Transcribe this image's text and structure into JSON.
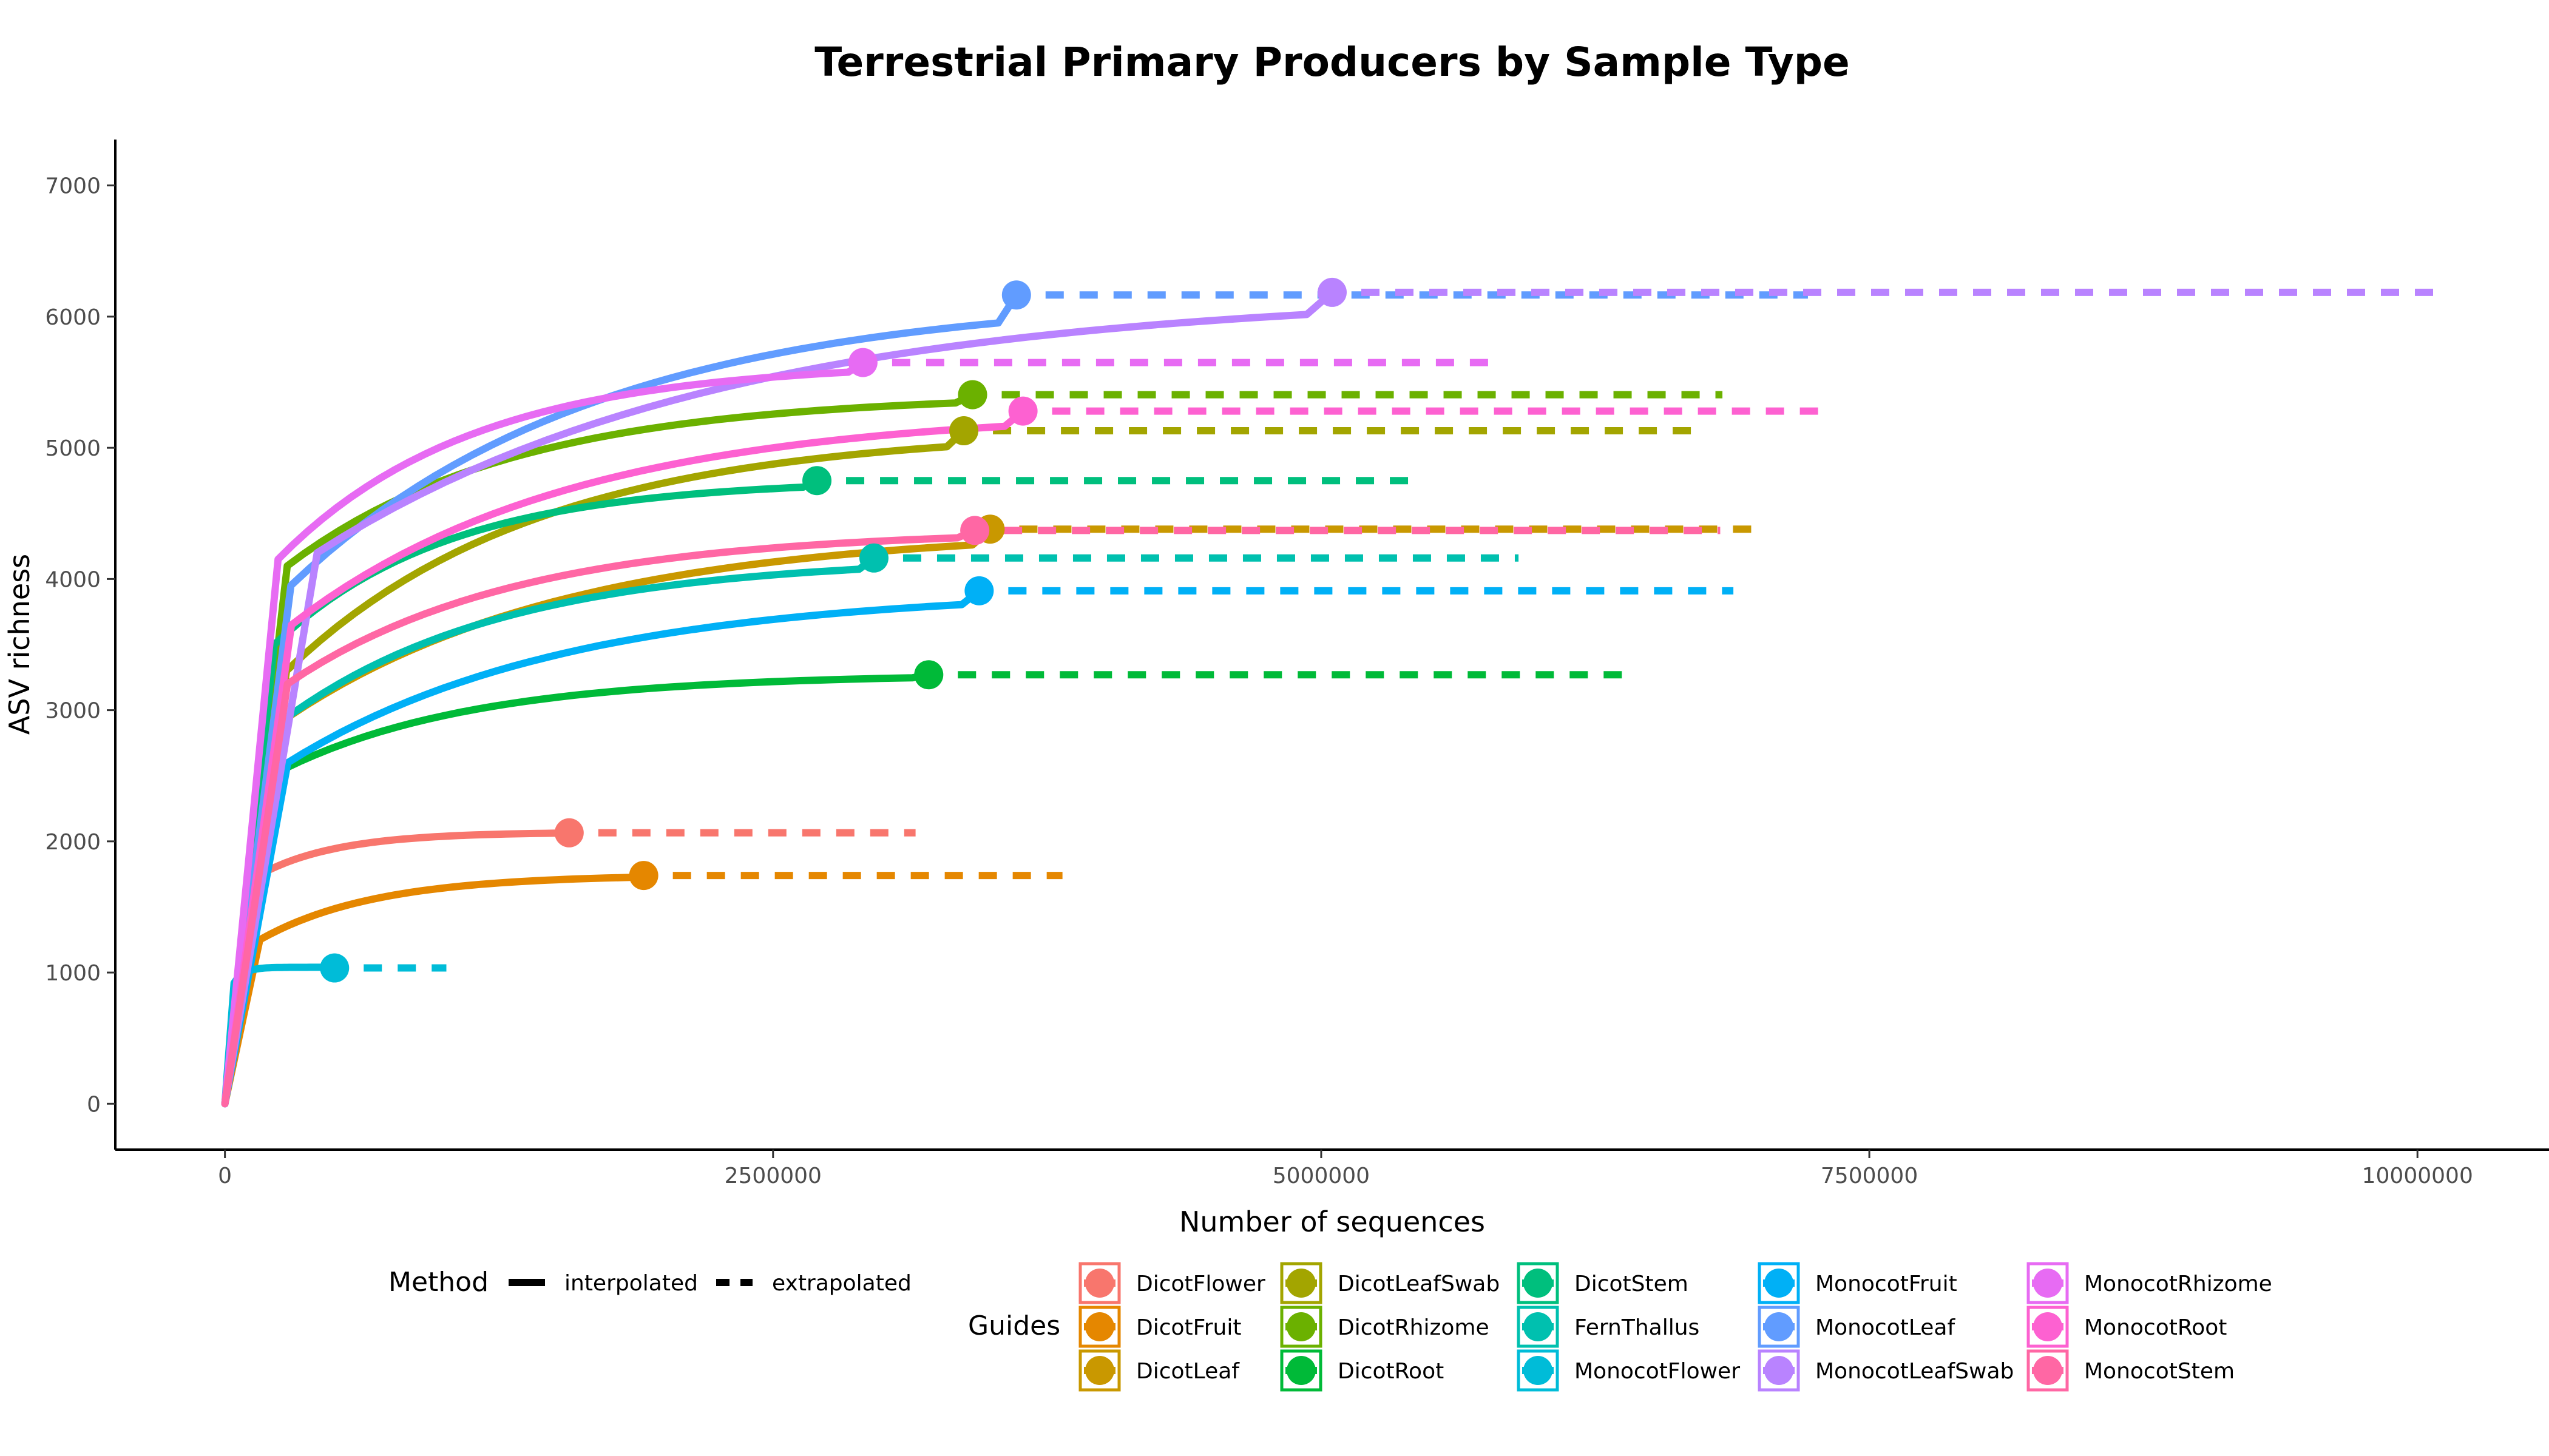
{
  "chart_data": {
    "type": "line",
    "title": "Terrestrial Primary Producers by Sample Type",
    "xlabel": "Number of sequences",
    "ylabel": "ASV richness",
    "xlim": [
      -500000,
      10600000
    ],
    "ylim": [
      -350,
      7350
    ],
    "x_ticks": [
      0,
      2500000,
      5000000,
      7500000,
      10000000
    ],
    "x_tick_labels": [
      "0",
      "2500000",
      "5000000",
      "7500000",
      "10000000"
    ],
    "y_ticks": [
      0,
      1000,
      2000,
      3000,
      4000,
      5000,
      6000,
      7000
    ],
    "y_tick_labels": [
      "0",
      "1000",
      "2000",
      "3000",
      "4000",
      "5000",
      "6000",
      "7000"
    ],
    "grid": false,
    "legend_position": "bottom",
    "method_legend": {
      "title": "Method",
      "items": [
        {
          "label": "interpolated",
          "style": "solid"
        },
        {
          "label": "extrapolated",
          "style": "dashed"
        }
      ]
    },
    "guides_legend": {
      "title": "Guides"
    },
    "series": [
      {
        "name": "DicotFlower",
        "color": "#F8766D",
        "observed": [
          1570000,
          2065
        ],
        "extrap_end": 3150000,
        "asymptote": 2070,
        "init": 1720,
        "k": 0.25,
        "p": 1.6
      },
      {
        "name": "DicotFruit",
        "color": "#E58700",
        "observed": [
          1910000,
          1740
        ],
        "extrap_end": 3820000,
        "asymptote": 1745,
        "init": 1250,
        "k": 0.3,
        "p": 1.5
      },
      {
        "name": "DicotLeaf",
        "color": "#C99800",
        "observed": [
          3490000,
          4380
        ],
        "extrap_end": 6970000,
        "asymptote": 4385,
        "init": 2950,
        "k": 0.4,
        "p": 1.4
      },
      {
        "name": "DicotLeafSwab",
        "color": "#A3A500",
        "observed": [
          3370000,
          5130
        ],
        "extrap_end": 6700000,
        "asymptote": 5140,
        "init": 3300,
        "k": 0.37,
        "p": 1.4
      },
      {
        "name": "DicotRhizome",
        "color": "#6BB100",
        "observed": [
          3410000,
          5405
        ],
        "extrap_end": 6830000,
        "asymptote": 5410,
        "init": 4100,
        "k": 0.33,
        "p": 1.5
      },
      {
        "name": "DicotRoot",
        "color": "#00BA38",
        "observed": [
          3210000,
          3270
        ],
        "extrap_end": 6400000,
        "asymptote": 3275,
        "init": 2550,
        "k": 0.3,
        "p": 1.5
      },
      {
        "name": "DicotStem",
        "color": "#00BF7D",
        "observed": [
          2700000,
          4750
        ],
        "extrap_end": 5400000,
        "asymptote": 4760,
        "init": 3500,
        "k": 0.32,
        "p": 1.5
      },
      {
        "name": "FernThallus",
        "color": "#00C0AF",
        "observed": [
          2960000,
          4160
        ],
        "extrap_end": 5900000,
        "asymptote": 4165,
        "init": 2900,
        "k": 0.37,
        "p": 1.4
      },
      {
        "name": "MonocotFlower",
        "color": "#00BCD8",
        "observed": [
          500000,
          1035
        ],
        "extrap_end": 1010000,
        "asymptote": 1040,
        "init": 920,
        "k": 0.1,
        "p": 1.6
      },
      {
        "name": "MonocotFruit",
        "color": "#00B0F6",
        "observed": [
          3440000,
          3910
        ],
        "extrap_end": 6880000,
        "asymptote": 3920,
        "init": 2600,
        "k": 0.4,
        "p": 1.4
      },
      {
        "name": "MonocotLeaf",
        "color": "#619CFF",
        "observed": [
          3610000,
          6165
        ],
        "extrap_end": 7220000,
        "asymptote": 6170,
        "init": 3950,
        "k": 0.42,
        "p": 1.4
      },
      {
        "name": "MonocotLeafSwab",
        "color": "#B983FF",
        "observed": [
          5050000,
          6185
        ],
        "extrap_end": 10100000,
        "asymptote": 6190,
        "init": 4200,
        "k": 0.4,
        "p": 1.4
      },
      {
        "name": "MonocotRhizome",
        "color": "#E76BF3",
        "observed": [
          2910000,
          5650
        ],
        "extrap_end": 5800000,
        "asymptote": 5655,
        "init": 4150,
        "k": 0.33,
        "p": 1.4
      },
      {
        "name": "MonocotRoot",
        "color": "#FD61D1",
        "observed": [
          3640000,
          5280
        ],
        "extrap_end": 7280000,
        "asymptote": 5290,
        "init": 3650,
        "k": 0.38,
        "p": 1.4
      },
      {
        "name": "MonocotStem",
        "color": "#FF67A4",
        "observed": [
          3420000,
          4370
        ],
        "extrap_end": 6820000,
        "asymptote": 4375,
        "init": 3200,
        "k": 0.33,
        "p": 1.4
      }
    ]
  }
}
